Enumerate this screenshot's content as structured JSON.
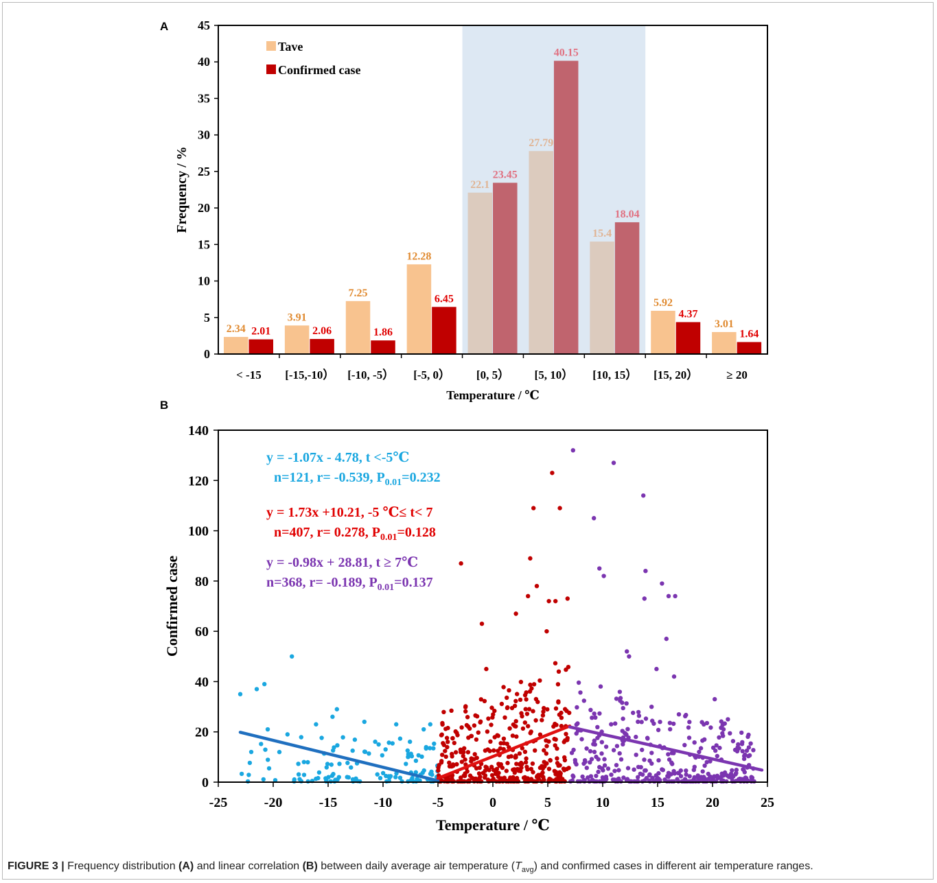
{
  "panel_labels": [
    "A",
    "B"
  ],
  "caption": {
    "label": "FIGURE 3 |",
    "part1": "Frequency distribution",
    "ref_a": "(A)",
    "part2": "and linear correlation",
    "ref_b": "(B)",
    "part3": "between daily average air temperature (",
    "tvar": "T",
    "tsub": "avg",
    "part4": ") and confirmed cases in different air temperature ranges."
  },
  "chart_data": [
    {
      "type": "bar",
      "panel": "A",
      "xlabel": "Temperature / ℃",
      "ylabel": "Frequency / %",
      "ylim": [
        0,
        45
      ],
      "yticks": [
        0,
        5,
        10,
        15,
        20,
        25,
        30,
        35,
        40,
        45
      ],
      "categories": [
        "< -15",
        "[-15,-10）",
        "[-10, -5）",
        "[-5, 0）",
        "[0, 5）",
        "[5, 10）",
        "[10, 15）",
        "[15, 20）",
        "≥ 20"
      ],
      "series": [
        {
          "name": "Tave",
          "values": [
            2.34,
            3.91,
            7.25,
            12.28,
            22.1,
            27.79,
            15.4,
            5.92,
            3.01
          ],
          "color": "#f8c38f",
          "label_color": "#e08a30"
        },
        {
          "name": "Confirmed case",
          "values": [
            2.01,
            2.06,
            1.86,
            6.45,
            23.45,
            40.15,
            18.04,
            4.37,
            1.64
          ],
          "color": "#c00000",
          "label_color": "#e00000"
        }
      ],
      "data_labels": [
        [
          "2.34",
          "3.91",
          "7.25",
          "12.28",
          "22.1",
          "27.79",
          "15.4",
          "5.92",
          "3.01"
        ],
        [
          "2.01",
          "2.06",
          "1.86",
          "6.45",
          "23.45",
          "40.15",
          "18.04",
          "4.37",
          "1.64"
        ]
      ],
      "highlight": {
        "from_category": 4,
        "to_category": 6,
        "color": "#dde8f3",
        "tave_color": "#dccbbe",
        "case_color": "#c0646e",
        "tave_label_color": "#e0b494",
        "case_label_color": "#e07080"
      },
      "legend_position": "top-left",
      "grid": false
    },
    {
      "type": "scatter",
      "panel": "B",
      "xlabel": "Temperature / ℃",
      "ylabel": "Confirmed case",
      "xlim": [
        -25,
        25
      ],
      "ylim": [
        0,
        140
      ],
      "xticks": [
        -25,
        -20,
        -15,
        -10,
        -5,
        0,
        5,
        10,
        15,
        20,
        25
      ],
      "yticks": [
        0,
        20,
        40,
        60,
        80,
        100,
        120,
        140
      ],
      "grid": false,
      "series": [
        {
          "range": "t < -5",
          "color": "#1aa7e0",
          "line_color": "#1f6fbf",
          "fit": {
            "slope": -1.07,
            "intercept": -4.78,
            "x_from": -23,
            "x_to": -5
          }
        },
        {
          "range": "-5 <= t < 7",
          "color": "#c00000",
          "line_color": "#e01010",
          "fit": {
            "slope": 1.73,
            "intercept": 10.21,
            "x_from": -5,
            "x_to": 7
          }
        },
        {
          "range": "t >= 7",
          "color": "#7b35b0",
          "line_color": "#7b35b0",
          "fit": {
            "slope": -0.98,
            "intercept": 28.81,
            "x_from": 7,
            "x_to": 24.5
          }
        }
      ],
      "annotations": [
        {
          "line1": "y = -1.07x - 4.78,   t <-5℃",
          "line2_a": "n=121, r= -0.539, P",
          "line2_sub": "0.01",
          "line2_b": "=0.232",
          "color": "#1aa7e0"
        },
        {
          "line1": "y = 1.73x +10.21, -5 ℃≤ t< 7",
          "line2_a": "n=407, r=  0.278,  P",
          "line2_sub": "0.01",
          "line2_b": "=0.128",
          "color": "#e00000"
        },
        {
          "line1": "y = -0.98x + 28.81,   t ≥ 7℃",
          "line2_a": "n=368, r= -0.189, P",
          "line2_sub": "0.01",
          "line2_b": "=0.137",
          "color": "#7b35b0"
        }
      ],
      "highlight_points": [
        {
          "x": -23.0,
          "y": 35,
          "s": 0
        },
        {
          "x": -21.5,
          "y": 37,
          "s": 0
        },
        {
          "x": -20.8,
          "y": 39,
          "s": 0
        },
        {
          "x": -18.3,
          "y": 50,
          "s": 0
        },
        {
          "x": -16.1,
          "y": 23,
          "s": 0
        },
        {
          "x": -14.2,
          "y": 29,
          "s": 0
        },
        {
          "x": -11.7,
          "y": 24,
          "s": 0
        },
        {
          "x": -8.8,
          "y": 23,
          "s": 0
        },
        {
          "x": -6.3,
          "y": 21,
          "s": 0
        },
        {
          "x": -5.7,
          "y": 23,
          "s": 0
        },
        {
          "x": -22.0,
          "y": 12,
          "s": 0
        },
        {
          "x": -20.5,
          "y": 21,
          "s": 0
        },
        {
          "x": -18.7,
          "y": 19,
          "s": 0
        },
        {
          "x": -17.2,
          "y": 8,
          "s": 0
        },
        {
          "x": -14.6,
          "y": 26,
          "s": 0
        },
        {
          "x": -10.4,
          "y": 15,
          "s": 0
        },
        {
          "x": 5.4,
          "y": 123,
          "s": 1
        },
        {
          "x": 3.7,
          "y": 109,
          "s": 1
        },
        {
          "x": 6.1,
          "y": 109,
          "s": 1
        },
        {
          "x": 3.4,
          "y": 89,
          "s": 1
        },
        {
          "x": -2.9,
          "y": 87,
          "s": 1
        },
        {
          "x": -1.0,
          "y": 63,
          "s": 1
        },
        {
          "x": 4.0,
          "y": 78,
          "s": 1
        },
        {
          "x": 5.1,
          "y": 72,
          "s": 1
        },
        {
          "x": 5.7,
          "y": 72,
          "s": 1
        },
        {
          "x": 6.8,
          "y": 73,
          "s": 1
        },
        {
          "x": 2.1,
          "y": 67,
          "s": 1
        },
        {
          "x": -0.6,
          "y": 45,
          "s": 1
        },
        {
          "x": 3.2,
          "y": 74,
          "s": 1
        },
        {
          "x": 4.9,
          "y": 60,
          "s": 1
        },
        {
          "x": 7.3,
          "y": 132,
          "s": 2
        },
        {
          "x": 11.0,
          "y": 127,
          "s": 2
        },
        {
          "x": 13.7,
          "y": 114,
          "s": 2
        },
        {
          "x": 9.2,
          "y": 105,
          "s": 2
        },
        {
          "x": 9.7,
          "y": 85,
          "s": 2
        },
        {
          "x": 13.9,
          "y": 84,
          "s": 2
        },
        {
          "x": 10.1,
          "y": 82,
          "s": 2
        },
        {
          "x": 15.4,
          "y": 79,
          "s": 2
        },
        {
          "x": 16.0,
          "y": 74,
          "s": 2
        },
        {
          "x": 16.6,
          "y": 74,
          "s": 2
        },
        {
          "x": 13.8,
          "y": 73,
          "s": 2
        },
        {
          "x": 15.8,
          "y": 57,
          "s": 2
        },
        {
          "x": 12.2,
          "y": 52,
          "s": 2
        },
        {
          "x": 12.4,
          "y": 50,
          "s": 2
        },
        {
          "x": 16.5,
          "y": 42,
          "s": 2
        },
        {
          "x": 14.9,
          "y": 45,
          "s": 2
        },
        {
          "x": 20.2,
          "y": 33,
          "s": 2
        },
        {
          "x": 21.4,
          "y": 25,
          "s": 2
        },
        {
          "x": 21.0,
          "y": 21,
          "s": 2
        }
      ],
      "point_counts": [
        121,
        407,
        368
      ]
    }
  ]
}
